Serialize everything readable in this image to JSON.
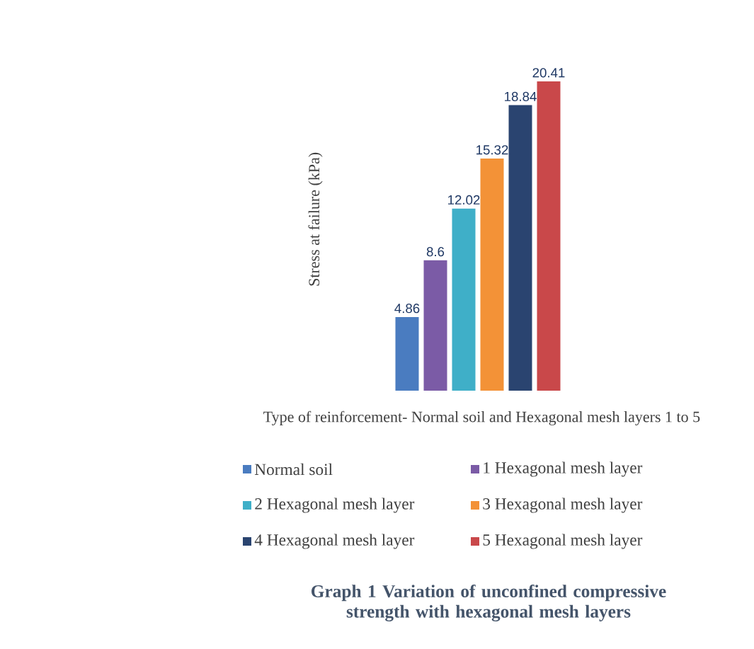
{
  "chart_data": {
    "type": "bar",
    "title": "Graph 1 Variation of unconfined compressive strength with hexagonal mesh layers",
    "xlabel": "Type of reinforcement- Normal soil and Hexagonal mesh layers 1 to 5",
    "ylabel": "Stress at failure (kPa)",
    "categories": [
      null
    ],
    "series": [
      {
        "name": "Normal soil",
        "color": "#4a7cc0",
        "values": [
          4.86
        ]
      },
      {
        "name": "1 Hexagonal mesh layer",
        "color": "#7b5ba6",
        "values": [
          8.6
        ]
      },
      {
        "name": "2 Hexagonal mesh layer",
        "color": "#3fafc8",
        "values": [
          12.02
        ]
      },
      {
        "name": "3 Hexagonal mesh layer",
        "color": "#f39237",
        "values": [
          15.32
        ]
      },
      {
        "name": "4 Hexagonal mesh layer",
        "color": "#2a4470",
        "values": [
          18.84
        ]
      },
      {
        "name": "5 Hexagonal mesh layer",
        "color": "#c9484a",
        "values": [
          20.41
        ]
      }
    ],
    "data_labels": true,
    "legend": "bottom"
  }
}
